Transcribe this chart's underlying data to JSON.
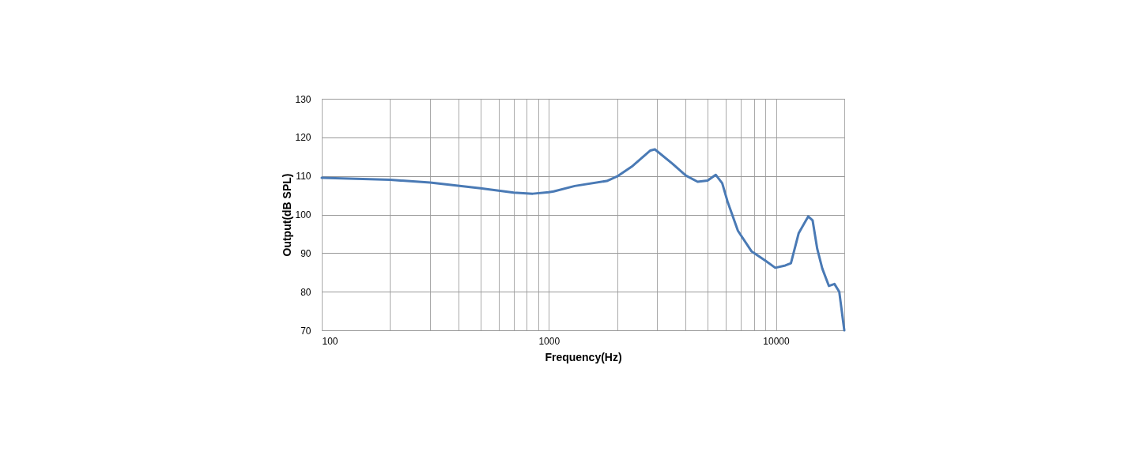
{
  "chart_data": {
    "type": "line",
    "xlabel": "Frequency(Hz)",
    "ylabel": "Output(dB SPL)",
    "log": "x",
    "grid": true,
    "marker": "none",
    "line_style": "solid",
    "xlim": [
      100,
      20000
    ],
    "ylim": [
      70,
      130
    ],
    "xticks": [
      100,
      {
        "value": 200,
        "label": null
      },
      {
        "value": 300,
        "label": null
      },
      {
        "value": 400,
        "label": null
      },
      {
        "value": 500,
        "label": null
      },
      {
        "value": 600,
        "label": null
      },
      {
        "value": 700,
        "label": null
      },
      {
        "value": 800,
        "label": null
      },
      {
        "value": 900,
        "label": null
      },
      1000,
      {
        "value": 2000,
        "label": null
      },
      {
        "value": 3000,
        "label": null
      },
      {
        "value": 4000,
        "label": null
      },
      {
        "value": 5000,
        "label": null
      },
      {
        "value": 6000,
        "label": null
      },
      {
        "value": 7000,
        "label": null
      },
      {
        "value": 8000,
        "label": null
      },
      {
        "value": 9000,
        "label": null
      },
      10000,
      {
        "value": 20000,
        "label": null
      }
    ],
    "yticks": [
      70,
      80,
      90,
      100,
      110,
      120,
      130
    ],
    "series": [
      {
        "color": "#4a7ab5",
        "x": [
          100,
          200,
          300,
          500,
          700,
          850,
          1000,
          1050,
          1300,
          1800,
          2000,
          2340,
          2800,
          2930,
          3500,
          4010,
          4520,
          5000,
          5430,
          5800,
          6120,
          6800,
          7800,
          9000,
          9930,
          11000,
          11640,
          12600,
          13870,
          14500,
          15200,
          16000,
          17100,
          18100,
          19000,
          20000
        ],
        "values": [
          109.5,
          109,
          108.3,
          106.8,
          105.7,
          105.4,
          105.8,
          106,
          107.4,
          108.7,
          109.9,
          112.6,
          116.6,
          116.9,
          113.2,
          110.1,
          108.5,
          108.8,
          110.3,
          108.1,
          103.4,
          95.8,
          90.5,
          88,
          86.2,
          86.8,
          87.4,
          95.2,
          99.5,
          98.5,
          91.1,
          86,
          81.5,
          82,
          80,
          70
        ]
      }
    ]
  }
}
